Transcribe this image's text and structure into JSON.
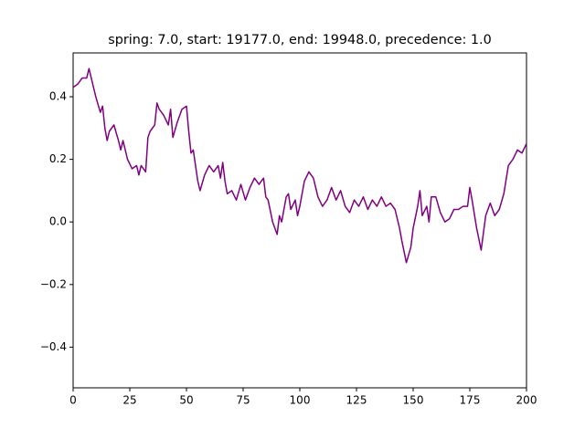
{
  "chart_data": {
    "type": "line",
    "title": "spring: 7.0, start: 19177.0, end: 19948.0, precedence: 1.0",
    "color": "#800080",
    "x": [
      0,
      2,
      4,
      6,
      7,
      8,
      10,
      12,
      13,
      14,
      15,
      16,
      18,
      20,
      21,
      22,
      24,
      26,
      28,
      29,
      30,
      32,
      33,
      34,
      36,
      37,
      38,
      40,
      42,
      43,
      44,
      46,
      48,
      50,
      51,
      52,
      53,
      54,
      55,
      56,
      58,
      60,
      62,
      64,
      65,
      66,
      67,
      68,
      70,
      72,
      74,
      76,
      78,
      80,
      82,
      84,
      85,
      86,
      88,
      90,
      91,
      92,
      94,
      95,
      96,
      98,
      99,
      100,
      102,
      104,
      106,
      108,
      110,
      112,
      114,
      116,
      118,
      120,
      122,
      124,
      126,
      128,
      130,
      132,
      134,
      136,
      138,
      140,
      142,
      144,
      145,
      147,
      149,
      150,
      152,
      153,
      154,
      156,
      157,
      158,
      160,
      162,
      164,
      166,
      168,
      170,
      172,
      174,
      175,
      176,
      178,
      180,
      182,
      184,
      186,
      188,
      190,
      192,
      194,
      196,
      198,
      200
    ],
    "values": [
      0.43,
      0.44,
      0.46,
      0.46,
      0.49,
      0.46,
      0.4,
      0.35,
      0.37,
      0.3,
      0.26,
      0.29,
      0.31,
      0.26,
      0.23,
      0.26,
      0.2,
      0.17,
      0.18,
      0.15,
      0.18,
      0.16,
      0.27,
      0.29,
      0.31,
      0.38,
      0.36,
      0.34,
      0.31,
      0.36,
      0.27,
      0.32,
      0.36,
      0.37,
      0.29,
      0.22,
      0.23,
      0.18,
      0.13,
      0.1,
      0.15,
      0.18,
      0.16,
      0.18,
      0.14,
      0.19,
      0.13,
      0.09,
      0.1,
      0.07,
      0.12,
      0.07,
      0.11,
      0.14,
      0.12,
      0.14,
      0.08,
      0.07,
      0.0,
      -0.04,
      0.02,
      0.0,
      0.08,
      0.09,
      0.04,
      0.07,
      0.02,
      0.05,
      0.13,
      0.16,
      0.14,
      0.08,
      0.05,
      0.07,
      0.11,
      0.07,
      0.1,
      0.05,
      0.03,
      0.07,
      0.05,
      0.08,
      0.04,
      0.07,
      0.05,
      0.08,
      0.05,
      0.06,
      0.04,
      -0.02,
      -0.06,
      -0.13,
      -0.08,
      -0.02,
      0.05,
      0.1,
      0.02,
      0.05,
      0.0,
      0.08,
      0.08,
      0.03,
      0.0,
      0.01,
      0.04,
      0.04,
      0.05,
      0.05,
      0.11,
      0.07,
      -0.02,
      -0.09,
      0.02,
      0.06,
      0.02,
      0.04,
      0.09,
      0.18,
      0.2,
      0.23,
      0.22,
      0.25
    ],
    "xlim": [
      0,
      200
    ],
    "xticks": [
      0,
      25,
      50,
      75,
      100,
      125,
      150,
      175,
      200
    ],
    "ylim": [
      -0.53,
      0.54
    ],
    "yticks": [
      {
        "value": -0.4,
        "label": "−0.4"
      },
      {
        "value": -0.2,
        "label": "−0.2"
      },
      {
        "value": 0,
        "label": "0.0"
      },
      0.2,
      0.4
    ]
  }
}
